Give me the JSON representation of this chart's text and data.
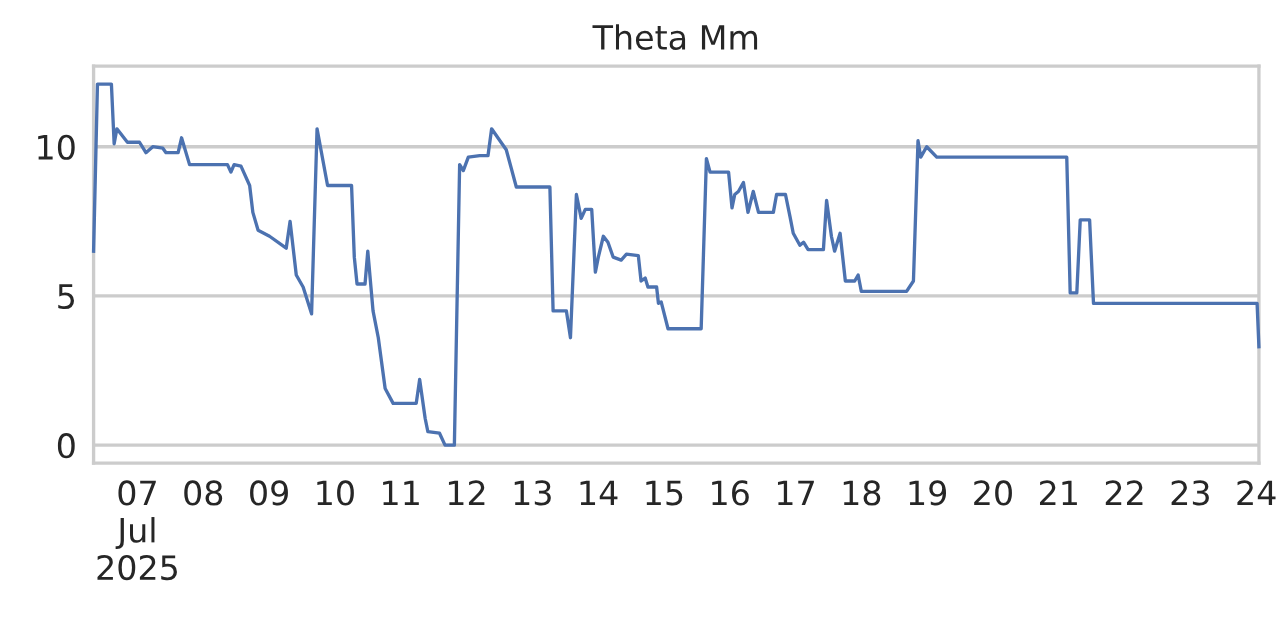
{
  "chart_data": {
    "type": "line",
    "title": "Theta Mm",
    "x": [
      "2025-07-06T08:00",
      "2025-07-06T09:25",
      "2025-07-06T14:30",
      "2025-07-06T15:30",
      "2025-07-06T16:30",
      "2025-07-06T20:20",
      "2025-07-07T00:45",
      "2025-07-07T03:05",
      "2025-07-07T05:35",
      "2025-07-07T09:15",
      "2025-07-07T10:25",
      "2025-07-07T14:50",
      "2025-07-07T16:05",
      "2025-07-07T19:00",
      "2025-07-08T08:50",
      "2025-07-08T10:05",
      "2025-07-08T11:15",
      "2025-07-08T13:45",
      "2025-07-08T16:55",
      "2025-07-08T18:05",
      "2025-07-08T20:00",
      "2025-07-09T00:10",
      "2025-07-09T06:15",
      "2025-07-09T07:40",
      "2025-07-09T09:55",
      "2025-07-09T12:25",
      "2025-07-09T15:30",
      "2025-07-09T17:30",
      "2025-07-09T21:20",
      "2025-07-10T06:05",
      "2025-07-10T07:05",
      "2025-07-10T08:05",
      "2025-07-10T11:00",
      "2025-07-10T12:00",
      "2025-07-10T13:55",
      "2025-07-10T15:50",
      "2025-07-10T18:20",
      "2025-07-10T21:15",
      "2025-07-11T05:40",
      "2025-07-11T06:55",
      "2025-07-11T08:55",
      "2025-07-11T09:55",
      "2025-07-11T14:10",
      "2025-07-11T16:10",
      "2025-07-11T19:35",
      "2025-07-11T21:30",
      "2025-07-11T22:50",
      "2025-07-12T00:40",
      "2025-07-12T04:50",
      "2025-07-12T07:50",
      "2025-07-12T09:10",
      "2025-07-12T12:35",
      "2025-07-12T14:30",
      "2025-07-12T18:10",
      "2025-07-13T06:25",
      "2025-07-13T07:35",
      "2025-07-13T12:25",
      "2025-07-13T13:55",
      "2025-07-13T16:05",
      "2025-07-13T17:50",
      "2025-07-13T19:20",
      "2025-07-13T21:40",
      "2025-07-13T23:00",
      "2025-07-14T00:05",
      "2025-07-14T01:55",
      "2025-07-14T03:35",
      "2025-07-14T05:30",
      "2025-07-14T08:25",
      "2025-07-14T10:20",
      "2025-07-14T14:40",
      "2025-07-14T15:40",
      "2025-07-14T17:10",
      "2025-07-14T18:10",
      "2025-07-14T21:20",
      "2025-07-14T22:00",
      "2025-07-14T23:00",
      "2025-07-15T01:30",
      "2025-07-15T13:35",
      "2025-07-15T15:30",
      "2025-07-15T16:50",
      "2025-07-15T23:35",
      "2025-07-16T00:50",
      "2025-07-16T01:50",
      "2025-07-16T03:10",
      "2025-07-16T05:00",
      "2025-07-16T06:40",
      "2025-07-16T08:35",
      "2025-07-16T10:30",
      "2025-07-16T15:55",
      "2025-07-16T17:05",
      "2025-07-16T20:20",
      "2025-07-16T22:00",
      "2025-07-16T23:10",
      "2025-07-17T01:35",
      "2025-07-17T02:55",
      "2025-07-17T04:35",
      "2025-07-17T10:10",
      "2025-07-17T11:20",
      "2025-07-17T13:05",
      "2025-07-17T14:15",
      "2025-07-17T16:15",
      "2025-07-17T18:10",
      "2025-07-17T21:35",
      "2025-07-17T22:50",
      "2025-07-18T00:00",
      "2025-07-18T16:30",
      "2025-07-18T19:00",
      "2025-07-18T20:40",
      "2025-07-18T21:40",
      "2025-07-18T23:50",
      "2025-07-19T03:30",
      "2025-07-21T02:55",
      "2025-07-21T04:10",
      "2025-07-21T06:35",
      "2025-07-21T07:50",
      "2025-07-21T11:15",
      "2025-07-21T12:40",
      "2025-07-24T00:20",
      "2025-07-24T01:00"
    ],
    "series": [
      {
        "color": "#4c72b0",
        "values": [
          6.5,
          12.1,
          12.1,
          10.1,
          10.6,
          10.15,
          10.15,
          9.8,
          10.0,
          9.95,
          9.8,
          9.8,
          10.3,
          9.4,
          9.4,
          9.15,
          9.4,
          9.35,
          8.7,
          7.8,
          7.2,
          7.0,
          6.6,
          7.5,
          5.7,
          5.3,
          4.4,
          10.6,
          8.7,
          8.7,
          6.3,
          5.4,
          5.4,
          6.5,
          4.5,
          3.6,
          1.9,
          1.4,
          1.4,
          2.2,
          0.9,
          0.45,
          0.4,
          0.0,
          0.0,
          9.4,
          9.2,
          9.65,
          9.7,
          9.7,
          10.6,
          10.15,
          9.9,
          8.65,
          8.65,
          4.5,
          4.5,
          3.6,
          8.4,
          7.6,
          7.9,
          7.9,
          5.8,
          6.3,
          7.0,
          6.8,
          6.3,
          6.2,
          6.4,
          6.35,
          5.5,
          5.6,
          5.3,
          5.3,
          4.75,
          4.8,
          3.9,
          3.9,
          9.6,
          9.15,
          9.15,
          7.95,
          8.4,
          8.5,
          8.8,
          7.8,
          8.5,
          7.8,
          7.8,
          8.4,
          8.4,
          7.65,
          7.1,
          6.7,
          6.8,
          6.55,
          6.55,
          8.2,
          7.0,
          6.5,
          7.1,
          5.5,
          5.5,
          5.7,
          5.15,
          5.15,
          5.5,
          10.2,
          9.65,
          10.0,
          9.65,
          9.65,
          5.1,
          5.1,
          7.55,
          7.55,
          4.75,
          4.75,
          3.3
        ]
      }
    ],
    "xlim": [
      "2025-07-06T08:00",
      "2025-07-24T01:00"
    ],
    "xticks": [
      {
        "value": "2025-07-07",
        "label": "07\nJul\n2025"
      },
      {
        "value": "2025-07-08",
        "label": "08"
      },
      {
        "value": "2025-07-09",
        "label": "09"
      },
      {
        "value": "2025-07-10",
        "label": "10"
      },
      {
        "value": "2025-07-11",
        "label": "11"
      },
      {
        "value": "2025-07-12",
        "label": "12"
      },
      {
        "value": "2025-07-13",
        "label": "13"
      },
      {
        "value": "2025-07-14",
        "label": "14"
      },
      {
        "value": "2025-07-15",
        "label": "15"
      },
      {
        "value": "2025-07-16",
        "label": "16"
      },
      {
        "value": "2025-07-17",
        "label": "17"
      },
      {
        "value": "2025-07-18",
        "label": "18"
      },
      {
        "value": "2025-07-19",
        "label": "19"
      },
      {
        "value": "2025-07-20",
        "label": "20"
      },
      {
        "value": "2025-07-21",
        "label": "21"
      },
      {
        "value": "2025-07-22",
        "label": "22"
      },
      {
        "value": "2025-07-23",
        "label": "23"
      },
      {
        "value": "2025-07-24",
        "label": "24"
      }
    ],
    "ylim": [
      -0.6,
      12.7
    ],
    "yticks": [
      0,
      5,
      10
    ],
    "grid": "y",
    "line_style": "solid",
    "marker": "none"
  }
}
